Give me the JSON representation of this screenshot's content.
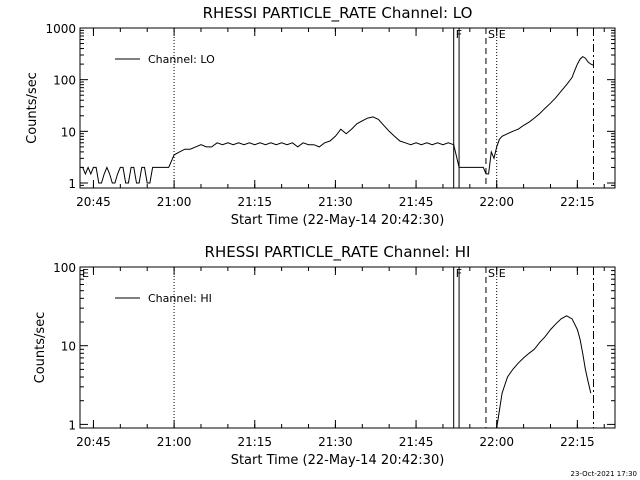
{
  "timestamp": "23-Oct-2021 17:30",
  "colors": {
    "background": "#ffffff",
    "foreground": "#000000"
  },
  "chart_data": [
    {
      "type": "line",
      "title": "RHESSI PARTICLE_RATE Channel: LO",
      "xlabel": "Start Time (22-May-14 20:42:30)",
      "ylabel": "Counts/sec",
      "xlim": [
        "20:42:30",
        "22:22:00"
      ],
      "x_ticks": [
        "20:45",
        "21:00",
        "21:15",
        "21:30",
        "21:45",
        "22:00",
        "22:15"
      ],
      "y_scale": "log",
      "ylim": [
        0.8,
        1000
      ],
      "y_ticks": [
        1,
        10,
        100,
        1000
      ],
      "y_tick_labels": [
        "1",
        "10",
        "100",
        "1000"
      ],
      "legend": {
        "position": "top-left",
        "entries": [
          "Channel: LO"
        ]
      },
      "markers": [
        {
          "time": "21:00",
          "style": "dotted",
          "label": ""
        },
        {
          "time": "21:52",
          "style": "solid",
          "label": "F"
        },
        {
          "time": "21:53",
          "style": "solid",
          "label": ""
        },
        {
          "time": "21:58",
          "style": "dashed",
          "label": "S"
        },
        {
          "time": "22:00",
          "style": "dotted",
          "label": "E"
        },
        {
          "time": "22:18",
          "style": "dashdot",
          "label": ""
        }
      ],
      "series": [
        {
          "name": "Channel: LO",
          "x": [
            "20:42:30",
            "20:43:00",
            "20:43:30",
            "20:44:00",
            "20:44:30",
            "20:45:00",
            "20:45:30",
            "20:46:00",
            "20:46:30",
            "20:47:00",
            "20:47:30",
            "20:48:00",
            "20:48:30",
            "20:49:00",
            "20:49:30",
            "20:50:00",
            "20:50:30",
            "20:51:00",
            "20:51:30",
            "20:52:00",
            "20:52:30",
            "20:53:00",
            "20:53:30",
            "20:54:00",
            "20:54:30",
            "20:55:00",
            "20:55:30",
            "20:56:00",
            "20:56:30",
            "20:57:00",
            "20:57:30",
            "20:58:00",
            "20:59:00",
            "21:00:00",
            "21:01:00",
            "21:02:00",
            "21:03:00",
            "21:04:00",
            "21:05:00",
            "21:06:00",
            "21:07:00",
            "21:08:00",
            "21:09:00",
            "21:10:00",
            "21:11:00",
            "21:12:00",
            "21:13:00",
            "21:14:00",
            "21:15:00",
            "21:16:00",
            "21:17:00",
            "21:18:00",
            "21:19:00",
            "21:20:00",
            "21:21:00",
            "21:22:00",
            "21:23:00",
            "21:24:00",
            "21:25:00",
            "21:26:00",
            "21:27:00",
            "21:28:00",
            "21:29:00",
            "21:30:00",
            "21:31:00",
            "21:32:00",
            "21:33:00",
            "21:34:00",
            "21:35:00",
            "21:36:00",
            "21:37:00",
            "21:38:00",
            "21:39:00",
            "21:40:00",
            "21:41:00",
            "21:42:00",
            "21:43:00",
            "21:44:00",
            "21:45:00",
            "21:46:00",
            "21:47:00",
            "21:48:00",
            "21:49:00",
            "21:50:00",
            "21:51:00",
            "21:52:00",
            "21:53:00",
            "21:54:00",
            "21:55:00",
            "21:56:00",
            "21:57:00",
            "21:57:30",
            "21:58:00",
            "21:58:30",
            "21:59:00",
            "21:59:30",
            "22:00:00",
            "22:00:30",
            "22:01:00",
            "22:02:00",
            "22:03:00",
            "22:04:00",
            "22:05:00",
            "22:06:00",
            "22:07:00",
            "22:08:00",
            "22:09:00",
            "22:10:00",
            "22:11:00",
            "22:12:00",
            "22:13:00",
            "22:14:00",
            "22:14:30",
            "22:15:00",
            "22:15:30",
            "22:16:00",
            "22:16:30",
            "22:17:00",
            "22:17:30",
            "22:18:00"
          ],
          "values": [
            2,
            2,
            1.5,
            2,
            1.5,
            2,
            2,
            1,
            1,
            1.5,
            2,
            1.5,
            1,
            1,
            1.5,
            2,
            2,
            1,
            1,
            2,
            2,
            1,
            1,
            2,
            2,
            1,
            1,
            2,
            2,
            2,
            2,
            2,
            2,
            3.5,
            4,
            4.5,
            4.5,
            5,
            5.5,
            5,
            5,
            6,
            5.5,
            6,
            5.5,
            6,
            5.5,
            6,
            5.5,
            6,
            5.5,
            6,
            5.5,
            6,
            5.5,
            6,
            5,
            6,
            5.5,
            5.5,
            5,
            6,
            6.5,
            8,
            11,
            9,
            11,
            14,
            16,
            18,
            19,
            17,
            13,
            10,
            8,
            6.5,
            6,
            5.5,
            6,
            5.5,
            6,
            5.5,
            6,
            5.5,
            6,
            5.5,
            2,
            2,
            2,
            2,
            2,
            2,
            1.5,
            1.5,
            4,
            3,
            5,
            7,
            8,
            9,
            10,
            11,
            13,
            15,
            18,
            22,
            28,
            35,
            45,
            60,
            80,
            110,
            150,
            200,
            250,
            280,
            260,
            220,
            200,
            190
          ]
        }
      ]
    },
    {
      "type": "line",
      "title": "RHESSI PARTICLE_RATE Channel: HI",
      "xlabel": "Start Time (22-May-14 20:42:30)",
      "ylabel": "Counts/sec",
      "xlim": [
        "20:42:30",
        "22:22:00"
      ],
      "x_ticks": [
        "20:45",
        "21:00",
        "21:15",
        "21:30",
        "21:45",
        "22:00",
        "22:15"
      ],
      "y_scale": "log",
      "ylim": [
        0.9,
        100
      ],
      "y_ticks": [
        1,
        10,
        100
      ],
      "y_tick_labels": [
        "1",
        "10",
        "100"
      ],
      "legend": {
        "position": "top-left",
        "entries": [
          "Channel: HI"
        ]
      },
      "markers": [
        {
          "time": "21:00",
          "style": "dotted",
          "label": ""
        },
        {
          "time": "21:52",
          "style": "solid",
          "label": "F"
        },
        {
          "time": "21:53",
          "style": "solid",
          "label": ""
        },
        {
          "time": "21:58",
          "style": "dashed",
          "label": "S"
        },
        {
          "time": "22:00",
          "style": "dotted",
          "label": "E"
        },
        {
          "time": "22:18",
          "style": "dashdot",
          "label": ""
        }
      ],
      "corner_label": "E",
      "series": [
        {
          "name": "Channel: HI",
          "x": [
            "22:00:00",
            "22:00:30",
            "22:01:00",
            "22:02:00",
            "22:03:00",
            "22:04:00",
            "22:05:00",
            "22:06:00",
            "22:07:00",
            "22:08:00",
            "22:09:00",
            "22:10:00",
            "22:11:00",
            "22:12:00",
            "22:13:00",
            "22:14:00",
            "22:15:00",
            "22:15:30",
            "22:16:00",
            "22:16:30",
            "22:17:00",
            "22:17:30"
          ],
          "values": [
            0.9,
            1.5,
            2.5,
            4,
            5,
            6,
            7,
            8,
            9,
            11,
            13,
            16,
            19,
            22,
            24,
            22,
            16,
            12,
            8,
            5,
            3.5,
            2.5
          ]
        }
      ]
    }
  ]
}
